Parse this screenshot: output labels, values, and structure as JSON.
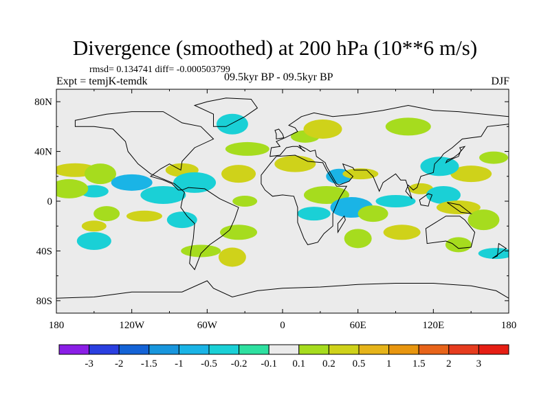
{
  "chart_data": {
    "type": "heatmap",
    "title": "Divergence (smoothed) at 200 hPa (10**6 m/s)",
    "stats": "rmsd= 0.134741  diff= -0.000503799",
    "experiment": "Expt = temjK-temdk",
    "period": "09.5kyr BP - 09.5kyr BP",
    "season": "DJF",
    "x_axis": {
      "range": [
        -180,
        180
      ],
      "ticks": [
        -180,
        -120,
        -60,
        0,
        60,
        120,
        180
      ],
      "tick_labels": [
        "180",
        "120W",
        "60W",
        "0",
        "60E",
        "120E",
        "180"
      ]
    },
    "y_axis": {
      "range": [
        -90,
        90
      ],
      "ticks": [
        80,
        40,
        0,
        -40,
        -80
      ],
      "tick_labels": [
        "80N",
        "40N",
        "0",
        "40S",
        "80S"
      ]
    },
    "colorbar": {
      "labels": [
        "-3",
        "-2",
        "-1.5",
        "-1",
        "-0.5",
        "-0.2",
        "-0.1",
        "0.1",
        "0.2",
        "0.5",
        "1",
        "1.5",
        "2",
        "3"
      ],
      "colors": [
        "#8a1ee6",
        "#2a3fe0",
        "#1463d6",
        "#1896dd",
        "#1ab4e6",
        "#1ad0d6",
        "#2ee0a0",
        "#ebebeb",
        "#a6dc1e",
        "#cfd21a",
        "#e6b41a",
        "#e8960f",
        "#e8641a",
        "#e63c1e",
        "#e61e14"
      ]
    },
    "features": [
      {
        "lon": -150,
        "lat": -20,
        "value": 0.5
      },
      {
        "lon": -150,
        "lat": -32,
        "value": -0.2
      },
      {
        "lon": -165,
        "lat": 25,
        "value": 0.5
      },
      {
        "lon": -145,
        "lat": 22,
        "value": 0.2
      },
      {
        "lon": -120,
        "lat": 15,
        "value": -0.5
      },
      {
        "lon": -150,
        "lat": 8,
        "value": -0.2
      },
      {
        "lon": -170,
        "lat": 10,
        "value": 0.2
      },
      {
        "lon": -140,
        "lat": -10,
        "value": 0.2
      },
      {
        "lon": -110,
        "lat": -12,
        "value": 0.5
      },
      {
        "lon": -95,
        "lat": 5,
        "value": -0.2
      },
      {
        "lon": -80,
        "lat": 25,
        "value": 0.5
      },
      {
        "lon": -70,
        "lat": 15,
        "value": -0.2
      },
      {
        "lon": -80,
        "lat": -15,
        "value": -0.2
      },
      {
        "lon": -65,
        "lat": -40,
        "value": 0.2
      },
      {
        "lon": -40,
        "lat": -45,
        "value": 0.5
      },
      {
        "lon": -35,
        "lat": -25,
        "value": 0.2
      },
      {
        "lon": -30,
        "lat": 0,
        "value": 0.2
      },
      {
        "lon": -35,
        "lat": 22,
        "value": 0.5
      },
      {
        "lon": -28,
        "lat": 42,
        "value": 0.2
      },
      {
        "lon": -40,
        "lat": 62,
        "value": -0.2
      },
      {
        "lon": 10,
        "lat": 30,
        "value": 0.5
      },
      {
        "lon": 18,
        "lat": 52,
        "value": 0.2
      },
      {
        "lon": 32,
        "lat": 58,
        "value": 0.5
      },
      {
        "lon": 45,
        "lat": 20,
        "value": -0.5
      },
      {
        "lon": 62,
        "lat": 22,
        "value": 0.5
      },
      {
        "lon": 35,
        "lat": 5,
        "value": 0.2
      },
      {
        "lon": 25,
        "lat": -10,
        "value": -0.2
      },
      {
        "lon": 55,
        "lat": -5,
        "value": -0.5
      },
      {
        "lon": 72,
        "lat": -10,
        "value": 0.2
      },
      {
        "lon": 90,
        "lat": 0,
        "value": -0.2
      },
      {
        "lon": 60,
        "lat": -30,
        "value": 0.2
      },
      {
        "lon": 95,
        "lat": -25,
        "value": 0.5
      },
      {
        "lon": 110,
        "lat": 10,
        "value": 0.5
      },
      {
        "lon": 128,
        "lat": 5,
        "value": -0.2
      },
      {
        "lon": 140,
        "lat": -5,
        "value": 0.5
      },
      {
        "lon": 160,
        "lat": -15,
        "value": 0.2
      },
      {
        "lon": 150,
        "lat": 22,
        "value": 0.5
      },
      {
        "lon": 168,
        "lat": 35,
        "value": 0.2
      },
      {
        "lon": 125,
        "lat": 28,
        "value": -0.2
      },
      {
        "lon": 140,
        "lat": -35,
        "value": 0.2
      },
      {
        "lon": 170,
        "lat": -42,
        "value": -0.2
      },
      {
        "lon": 100,
        "lat": 60,
        "value": 0.2
      }
    ]
  }
}
